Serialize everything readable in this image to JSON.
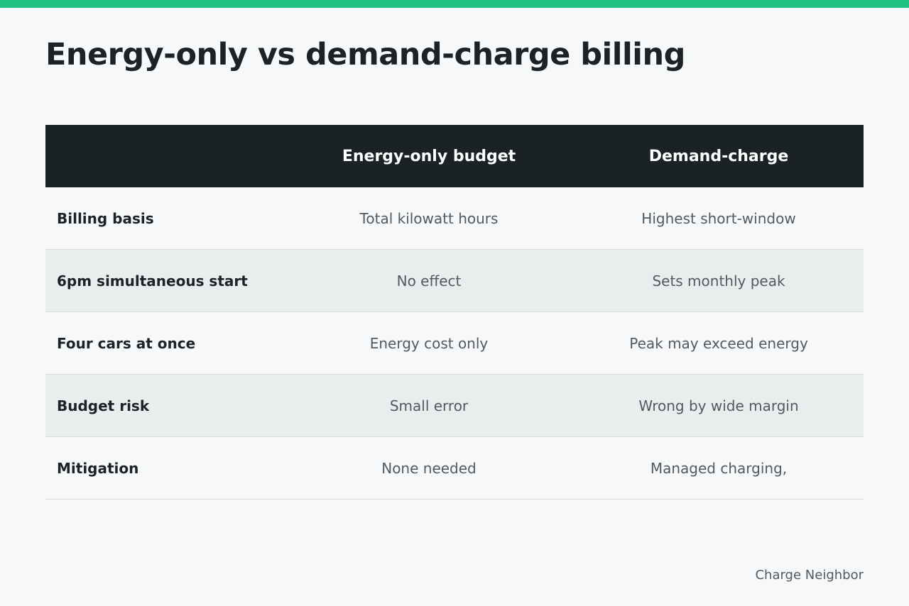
{
  "title": "Energy-only vs demand-charge billing",
  "colors": {
    "accent_bar": "#21c083",
    "header_bg": "#1b2226",
    "row_shade": "#e8eeee",
    "page_bg": "#f6f8fa"
  },
  "table": {
    "headers": [
      "",
      "Energy-only budget",
      "Demand-charge"
    ],
    "rows": [
      {
        "label": "Billing basis",
        "energy_only": "Total kilowatt hours",
        "demand_charge": "Highest short-window"
      },
      {
        "label": "6pm simultaneous start",
        "energy_only": "No effect",
        "demand_charge": "Sets monthly peak"
      },
      {
        "label": "Four cars at once",
        "energy_only": "Energy cost only",
        "demand_charge": "Peak may exceed energy"
      },
      {
        "label": "Budget risk",
        "energy_only": "Small error",
        "demand_charge": "Wrong by wide margin"
      },
      {
        "label": "Mitigation",
        "energy_only": "None needed",
        "demand_charge": "Managed charging,"
      }
    ]
  },
  "footer": {
    "brand": "Charge Neighbor"
  }
}
